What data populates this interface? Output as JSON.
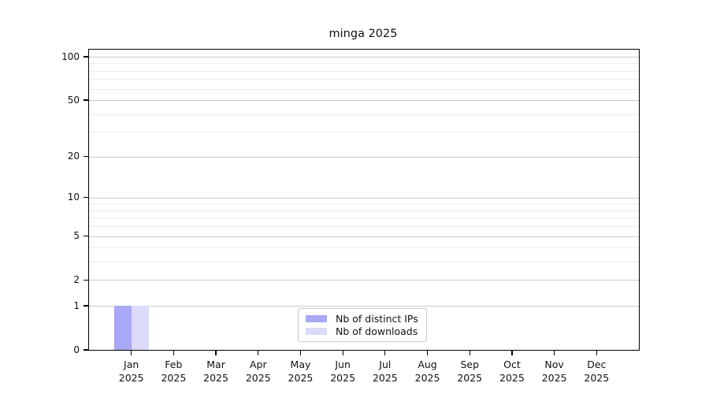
{
  "chart_data": {
    "type": "bar",
    "title": "minga 2025",
    "x_categories": [
      {
        "month": "Jan",
        "year": "2025"
      },
      {
        "month": "Feb",
        "year": "2025"
      },
      {
        "month": "Mar",
        "year": "2025"
      },
      {
        "month": "Apr",
        "year": "2025"
      },
      {
        "month": "May",
        "year": "2025"
      },
      {
        "month": "Jun",
        "year": "2025"
      },
      {
        "month": "Jul",
        "year": "2025"
      },
      {
        "month": "Aug",
        "year": "2025"
      },
      {
        "month": "Sep",
        "year": "2025"
      },
      {
        "month": "Oct",
        "year": "2025"
      },
      {
        "month": "Nov",
        "year": "2025"
      },
      {
        "month": "Dec",
        "year": "2025"
      }
    ],
    "series": [
      {
        "name": "Nb of distinct IPs",
        "color": "#a8a8f6",
        "values": [
          1,
          0,
          0,
          0,
          0,
          0,
          0,
          0,
          0,
          0,
          0,
          0
        ]
      },
      {
        "name": "Nb of downloads",
        "color": "#dbdaf9",
        "values": [
          1,
          0,
          0,
          0,
          0,
          0,
          0,
          0,
          0,
          0,
          0,
          0
        ]
      }
    ],
    "y_axis": {
      "scale": "log1p",
      "min": 0,
      "max": 112,
      "major_ticks": [
        0,
        1,
        2,
        5,
        10,
        20,
        50,
        100
      ],
      "minor_gridlines": [
        3,
        4,
        6,
        7,
        8,
        9,
        30,
        40,
        60,
        70,
        80,
        90
      ]
    },
    "grid": "horizontal",
    "legend_position": "bottom-center"
  }
}
